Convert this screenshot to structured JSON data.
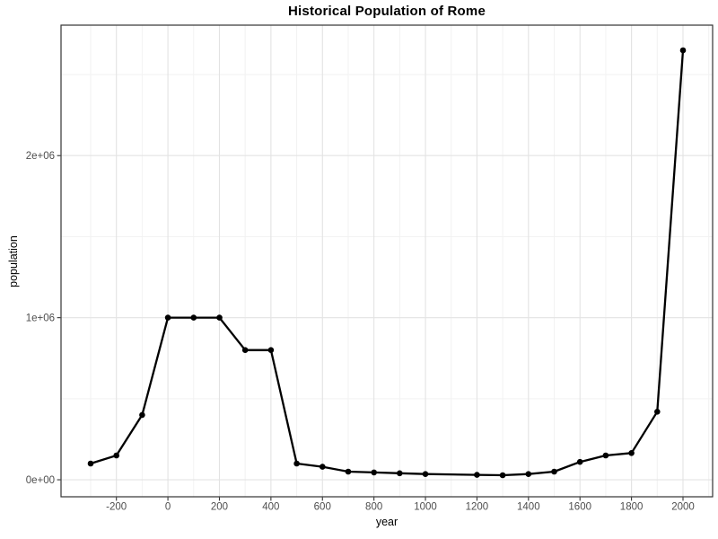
{
  "chart_data": {
    "type": "line",
    "title": "Historical Population of Rome",
    "xlabel": "year",
    "ylabel": "population",
    "series_name": "population of Rome",
    "x": [
      -300,
      -200,
      -100,
      0,
      100,
      200,
      300,
      400,
      500,
      600,
      700,
      800,
      900,
      1000,
      1200,
      1300,
      1400,
      1500,
      1600,
      1700,
      1800,
      1900,
      2000
    ],
    "values": [
      100000,
      150000,
      400000,
      1000000,
      1000000,
      1000000,
      800000,
      800000,
      100000,
      80000,
      50000,
      45000,
      40000,
      35000,
      30000,
      28000,
      35000,
      50000,
      110000,
      150000,
      165000,
      420000,
      2650000
    ],
    "x_domain": [
      -415,
      2115
    ],
    "y_domain": [
      -105000,
      2805000
    ],
    "x_tick_values": [
      -200,
      0,
      200,
      400,
      600,
      800,
      1000,
      1200,
      1400,
      1600,
      1800,
      2000
    ],
    "x_tick_labels": [
      "-200",
      "0",
      "200",
      "400",
      "600",
      "800",
      "1000",
      "1200",
      "1400",
      "1600",
      "1800",
      "2000"
    ],
    "x_minor_ticks": [
      -300,
      -100,
      100,
      300,
      500,
      700,
      900,
      1100,
      1300,
      1500,
      1700,
      1900,
      2100
    ],
    "y_tick_values": [
      0,
      1000000,
      2000000
    ],
    "y_tick_labels": [
      "0e+00",
      "1e+06",
      "2e+06"
    ],
    "y_minor_ticks": [
      500000,
      1500000,
      2500000
    ],
    "grid": "major+minor",
    "legend": "none",
    "marker": "filled-circle",
    "colors": {
      "line": "#000000",
      "point": "#000000",
      "grid_major": "#E3E3E3",
      "grid_minor": "#F2F2F2",
      "panel_border": "#333333",
      "panel_background": "#FFFFFF",
      "tick_mark": "#333333",
      "tick_label": "#4D4D4D",
      "title": "#000000"
    }
  }
}
